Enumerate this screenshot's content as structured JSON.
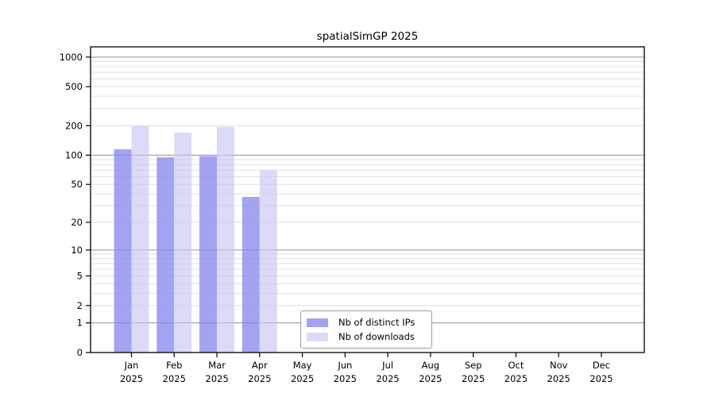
{
  "window": {
    "background_color": "#ffffff"
  },
  "chart_data": {
    "type": "bar",
    "title": "spatialSimGP 2025",
    "year_label": "2025",
    "categories": [
      "Jan",
      "Feb",
      "Mar",
      "Apr",
      "May",
      "Jun",
      "Jul",
      "Aug",
      "Sep",
      "Oct",
      "Nov",
      "Dec"
    ],
    "series": [
      {
        "name": "Nb of distinct IPs",
        "color": "#a3a3f3",
        "values": [
          115,
          95,
          98,
          37,
          0,
          0,
          0,
          0,
          0,
          0,
          0,
          0
        ]
      },
      {
        "name": "Nb of downloads",
        "color": "#dbdbf9",
        "values": [
          200,
          170,
          195,
          70,
          0,
          0,
          0,
          0,
          0,
          0,
          0,
          0
        ]
      }
    ],
    "xlabel": "",
    "ylabel": "",
    "yscale": "log1p",
    "yticks": [
      0,
      1,
      2,
      5,
      10,
      20,
      50,
      100,
      200,
      500,
      1000
    ],
    "ylim": [
      0,
      1270
    ],
    "grid": true,
    "grid_major_color": "#b1b1b1",
    "grid_minor_color": "#ededed",
    "axis_color": "#000000",
    "legend_position": "lower center"
  }
}
